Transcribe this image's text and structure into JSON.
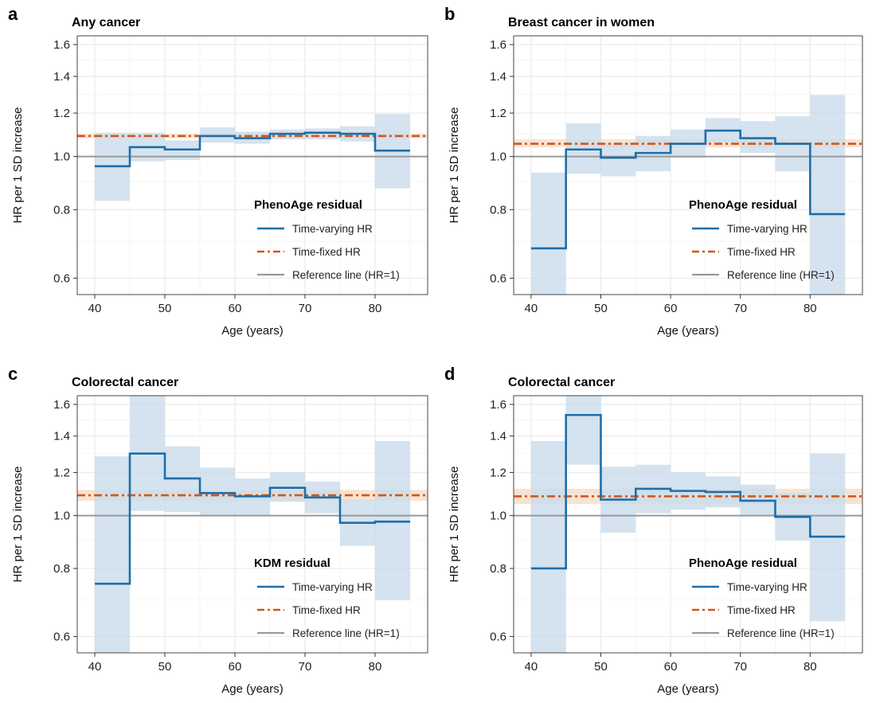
{
  "colors": {
    "time_varying": "#1f6ea8",
    "time_varying_band": "#c9dceb",
    "time_fixed": "#d2561a",
    "time_fixed_band": "#f6dcc7",
    "reference": "#999999",
    "grid": "#ececec",
    "frame": "#444444"
  },
  "chart_data": [
    {
      "type": "line",
      "letter": "a",
      "title": "Any cancer",
      "xlabel": "Age (years)",
      "ylabel": "HR per 1 SD increase",
      "xlim": [
        37.5,
        87.5
      ],
      "ylim": [
        0.56,
        1.66
      ],
      "y_scale": "log",
      "x_ticks": [
        40,
        50,
        60,
        70,
        80
      ],
      "y_ticks": [
        0.6,
        0.8,
        1.0,
        1.2,
        1.4,
        1.6
      ],
      "y_tick_labels": [
        "0.6",
        "0.8",
        "1.0",
        "1.2",
        "1.4",
        "1.6"
      ],
      "grid": true,
      "legend": {
        "title": "PhenoAge residual",
        "position": "bottom-right",
        "entries": [
          "Time-varying HR",
          "Time-fixed HR",
          "Reference line (HR=1)"
        ]
      },
      "time_fixed": {
        "hr": 1.09,
        "lower": 1.08,
        "upper": 1.1
      },
      "reference": 1.0,
      "time_varying": {
        "age_bins": [
          [
            40,
            45
          ],
          [
            45,
            50
          ],
          [
            50,
            55
          ],
          [
            55,
            60
          ],
          [
            60,
            65
          ],
          [
            65,
            70
          ],
          [
            70,
            75
          ],
          [
            75,
            80
          ],
          [
            80,
            85
          ]
        ],
        "hr": [
          0.96,
          1.04,
          1.03,
          1.09,
          1.08,
          1.1,
          1.105,
          1.1,
          1.025
        ],
        "lower": [
          0.83,
          0.98,
          0.985,
          1.06,
          1.055,
          1.075,
          1.075,
          1.065,
          0.875
        ],
        "upper": [
          1.105,
          1.105,
          1.07,
          1.13,
          1.11,
          1.12,
          1.125,
          1.135,
          1.195
        ]
      }
    },
    {
      "type": "line",
      "letter": "b",
      "title": "Breast cancer in women",
      "xlabel": "Age (years)",
      "ylabel": "HR per 1 SD increase",
      "xlim": [
        37.5,
        87.5
      ],
      "ylim": [
        0.56,
        1.66
      ],
      "y_scale": "log",
      "x_ticks": [
        40,
        50,
        60,
        70,
        80
      ],
      "y_ticks": [
        0.6,
        0.8,
        1.0,
        1.2,
        1.4,
        1.6
      ],
      "y_tick_labels": [
        "0.6",
        "0.8",
        "1.0",
        "1.2",
        "1.4",
        "1.6"
      ],
      "grid": true,
      "legend": {
        "title": "PhenoAge residual",
        "position": "bottom-right",
        "entries": [
          "Time-varying HR",
          "Time-fixed HR",
          "Reference line (HR=1)"
        ]
      },
      "time_fixed": {
        "hr": 1.055,
        "lower": 1.04,
        "upper": 1.075
      },
      "reference": 1.0,
      "time_varying": {
        "age_bins": [
          [
            40,
            45
          ],
          [
            45,
            50
          ],
          [
            50,
            55
          ],
          [
            55,
            60
          ],
          [
            60,
            65
          ],
          [
            65,
            70
          ],
          [
            70,
            75
          ],
          [
            75,
            80
          ],
          [
            80,
            85
          ]
        ],
        "hr": [
          0.68,
          1.03,
          0.995,
          1.015,
          1.055,
          1.115,
          1.08,
          1.055,
          0.785
        ],
        "lower": [
          0.56,
          0.93,
          0.92,
          0.94,
          0.995,
          1.06,
          1.015,
          0.94,
          0.56
        ],
        "upper": [
          0.935,
          1.15,
          1.06,
          1.09,
          1.12,
          1.175,
          1.16,
          1.185,
          1.295
        ]
      }
    },
    {
      "type": "line",
      "letter": "c",
      "title": "Colorectal cancer",
      "xlabel": "Age (years)",
      "ylabel": "HR per 1 SD increase",
      "xlim": [
        37.5,
        87.5
      ],
      "ylim": [
        0.56,
        1.66
      ],
      "y_scale": "log",
      "x_ticks": [
        40,
        50,
        60,
        70,
        80
      ],
      "y_ticks": [
        0.6,
        0.8,
        1.0,
        1.2,
        1.4,
        1.6
      ],
      "y_tick_labels": [
        "0.6",
        "0.8",
        "1.0",
        "1.2",
        "1.4",
        "1.6"
      ],
      "grid": true,
      "legend": {
        "title": "KDM residual",
        "position": "bottom-right",
        "entries": [
          "Time-varying HR",
          "Time-fixed HR",
          "Reference line (HR=1)"
        ]
      },
      "time_fixed": {
        "hr": 1.09,
        "lower": 1.065,
        "upper": 1.115
      },
      "reference": 1.0,
      "time_varying": {
        "age_bins": [
          [
            40,
            45
          ],
          [
            45,
            50
          ],
          [
            50,
            55
          ],
          [
            55,
            60
          ],
          [
            60,
            65
          ],
          [
            65,
            70
          ],
          [
            70,
            75
          ],
          [
            75,
            80
          ],
          [
            80,
            85
          ]
        ],
        "hr": [
          0.75,
          1.3,
          1.17,
          1.1,
          1.085,
          1.125,
          1.08,
          0.97,
          0.975
        ],
        "lower": [
          0.56,
          1.02,
          1.015,
          1.0,
          1.0,
          1.06,
          1.01,
          0.88,
          0.7
        ],
        "upper": [
          1.285,
          1.66,
          1.34,
          1.225,
          1.17,
          1.2,
          1.155,
          1.07,
          1.37
        ]
      }
    },
    {
      "type": "line",
      "letter": "d",
      "title": "Colorectal cancer",
      "xlabel": "Age (years)",
      "ylabel": "HR per 1 SD increase",
      "xlim": [
        37.5,
        87.5
      ],
      "ylim": [
        0.56,
        1.66
      ],
      "y_scale": "log",
      "x_ticks": [
        40,
        50,
        60,
        70,
        80
      ],
      "y_ticks": [
        0.6,
        0.8,
        1.0,
        1.2,
        1.4,
        1.6
      ],
      "y_tick_labels": [
        "0.6",
        "0.8",
        "1.0",
        "1.2",
        "1.4",
        "1.6"
      ],
      "grid": true,
      "legend": {
        "title": "PhenoAge residual",
        "position": "bottom-right",
        "entries": [
          "Time-varying HR",
          "Time-fixed HR",
          "Reference line (HR=1)"
        ]
      },
      "time_fixed": {
        "hr": 1.085,
        "lower": 1.05,
        "upper": 1.12
      },
      "reference": 1.0,
      "time_varying": {
        "age_bins": [
          [
            40,
            45
          ],
          [
            45,
            50
          ],
          [
            50,
            55
          ],
          [
            55,
            60
          ],
          [
            60,
            65
          ],
          [
            65,
            70
          ],
          [
            70,
            75
          ],
          [
            75,
            80
          ],
          [
            80,
            85
          ]
        ],
        "hr": [
          0.8,
          1.53,
          1.07,
          1.12,
          1.11,
          1.105,
          1.065,
          0.995,
          0.915
        ],
        "lower": [
          0.56,
          1.24,
          0.93,
          1.01,
          1.025,
          1.035,
          1.0,
          0.9,
          0.64
        ],
        "upper": [
          1.37,
          1.66,
          1.23,
          1.24,
          1.2,
          1.18,
          1.14,
          1.1,
          1.3
        ]
      }
    }
  ]
}
